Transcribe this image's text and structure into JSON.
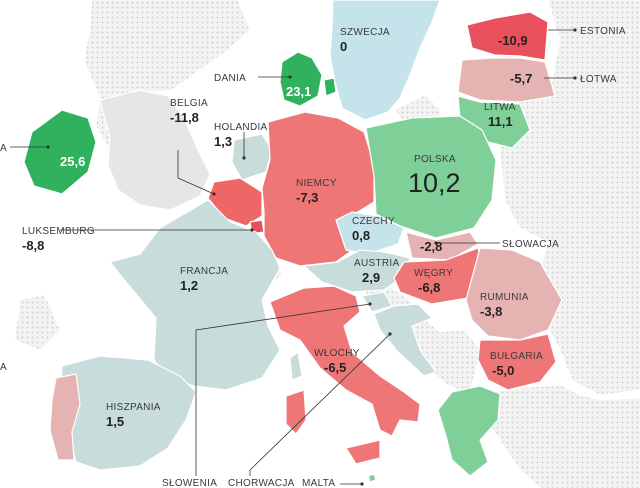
{
  "legend_colors": {
    "strong_positive": "#2fb15e",
    "positive": "#7fcf98",
    "slight_positive": "#c5e3ea",
    "neutral": "#c8dcdc",
    "slight_negative": "#e6b3b3",
    "negative": "#ef7676",
    "strong_negative": "#e8505b",
    "land_non_eu": "#e6e6e6",
    "sea": "#ffffff"
  },
  "countries": [
    {
      "name": "SZWECJA",
      "value": "0"
    },
    {
      "name": "ESTONIA",
      "value": "-10,9"
    },
    {
      "name": "ŁOTWA",
      "value": "-5,7"
    },
    {
      "name": "LITWA",
      "value": "11,1"
    },
    {
      "name": "DANIA",
      "value": "23,1"
    },
    {
      "name": "BELGIA",
      "value": "-11,8"
    },
    {
      "name": "HOLANDIA",
      "value": "1,3"
    },
    {
      "name": "A",
      "value": "25,6"
    },
    {
      "name": "NIEMCY",
      "value": "-7,3"
    },
    {
      "name": "POLSKA",
      "value": "10,2"
    },
    {
      "name": "CZECHY",
      "value": "0,8"
    },
    {
      "name": "LUKSEMBURG",
      "value": "-8,8"
    },
    {
      "name": "SŁOWACJA",
      "value": "-2,8"
    },
    {
      "name": "AUSTRIA",
      "value": "2,9"
    },
    {
      "name": "WĘGRY",
      "value": "-6,8"
    },
    {
      "name": "FRANCJA",
      "value": "1,2"
    },
    {
      "name": "RUMUNIA",
      "value": "-3,8"
    },
    {
      "name": "WŁOCHY",
      "value": "-6,5"
    },
    {
      "name": "BUŁGARIA",
      "value": "-5,0"
    },
    {
      "name": "A",
      "value": ""
    },
    {
      "name": "HISZPANIA",
      "value": "1,5"
    },
    {
      "name": "SŁOWENIA",
      "value": ""
    },
    {
      "name": "CHORWACJA",
      "value": ""
    },
    {
      "name": "MALTA",
      "value": ""
    }
  ]
}
